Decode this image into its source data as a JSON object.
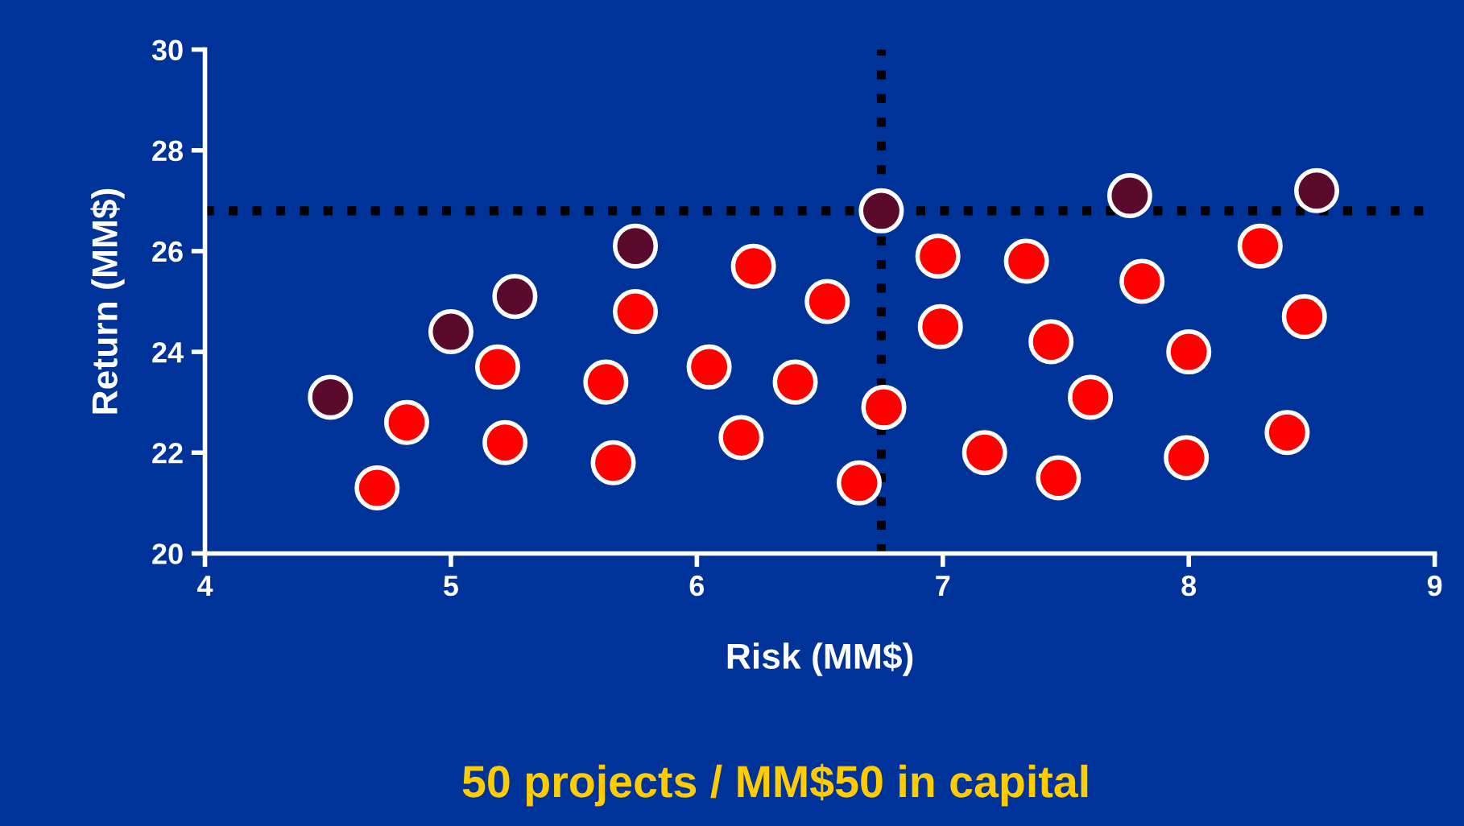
{
  "chart_data": {
    "type": "scatter",
    "xlabel": "Risk (MM$)",
    "ylabel": "Return (MM$)",
    "xlim": [
      4,
      9
    ],
    "ylim": [
      20,
      30
    ],
    "xticks": [
      4,
      5,
      6,
      7,
      8,
      9
    ],
    "yticks": [
      20,
      22,
      24,
      26,
      28,
      30
    ],
    "grid": false,
    "legend": false,
    "marker": "circle",
    "series": [
      {
        "color": "#ff0000",
        "x": [
          4.7,
          4.82,
          5.19,
          5.22,
          5.63,
          5.66,
          5.75,
          6.05,
          6.18,
          6.23,
          6.4,
          6.53,
          6.66,
          6.76,
          6.98,
          6.99,
          7.17,
          7.34,
          7.44,
          7.47,
          7.6,
          7.81,
          8.0,
          7.99,
          8.29,
          8.47,
          8.4
        ],
        "values": [
          21.3,
          22.6,
          23.7,
          22.2,
          23.4,
          21.8,
          24.8,
          23.7,
          22.3,
          25.7,
          23.4,
          25.0,
          21.4,
          22.9,
          25.9,
          24.5,
          22.0,
          25.8,
          24.2,
          21.5,
          23.1,
          25.4,
          24.0,
          21.9,
          26.1,
          24.7,
          22.4
        ]
      },
      {
        "color": "#5a0a2a",
        "x": [
          4.51,
          5.0,
          5.26,
          5.75,
          6.75,
          7.76,
          8.52
        ],
        "values": [
          23.1,
          24.4,
          25.1,
          26.1,
          26.8,
          27.1,
          27.2
        ]
      }
    ],
    "ref_lines": [
      {
        "axis": "x",
        "value": 6.75,
        "color": "#000000",
        "line_style": "dotted"
      },
      {
        "axis": "y",
        "value": 26.8,
        "color": "#000000",
        "line_style": "dotted"
      }
    ],
    "annotations": [
      "50 projects / MM$50 in capital"
    ]
  }
}
